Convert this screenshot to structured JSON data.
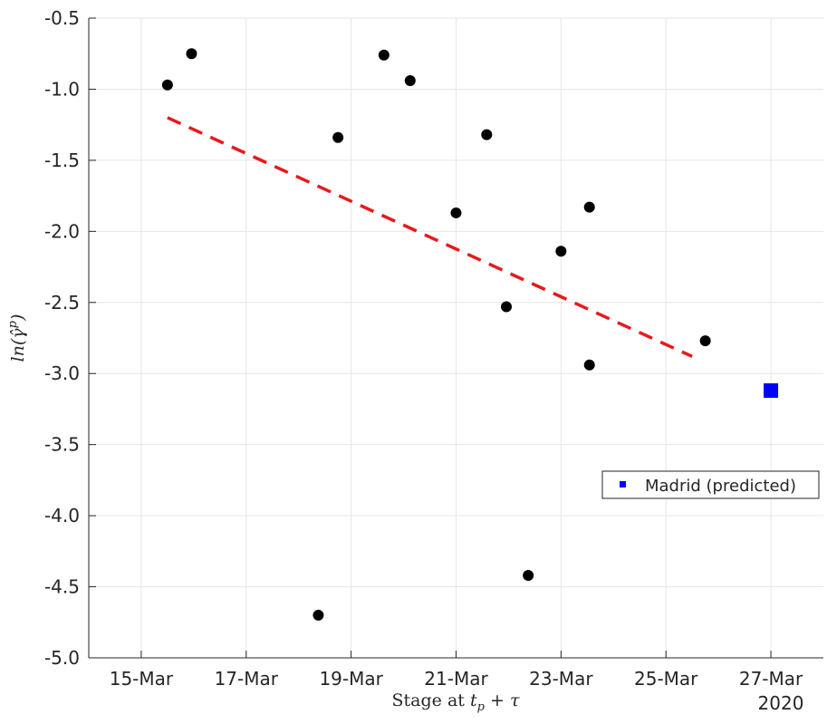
{
  "chart_data": {
    "type": "scatter",
    "title": "",
    "xlabel": "Stage at t_p + τ",
    "ylabel": "ln(γ̂^p)",
    "x_tick_labels": [
      "15-Mar",
      "17-Mar",
      "19-Mar",
      "21-Mar",
      "23-Mar",
      "25-Mar",
      "27-Mar"
    ],
    "x_tick_dates": [
      "2020-03-15",
      "2020-03-17",
      "2020-03-19",
      "2020-03-21",
      "2020-03-23",
      "2020-03-25",
      "2020-03-27"
    ],
    "x_secondary_label": "2020",
    "xlim": [
      "2020-03-14T00:00",
      "2020-03-28T00:00"
    ],
    "ylim": [
      -5.0,
      -0.5
    ],
    "y_ticks": [
      -5.0,
      -4.5,
      -4.0,
      -3.5,
      -3.0,
      -2.5,
      -2.0,
      -1.5,
      -1.0,
      -0.5
    ],
    "y_tick_labels": [
      "-5.0",
      "-4.5",
      "-4.0",
      "-3.5",
      "-3.0",
      "-2.5",
      "-2.0",
      "-1.5",
      "-1.0",
      "-0.5"
    ],
    "grid": true,
    "series": [
      {
        "marker": "circle",
        "color": "#000000",
        "points": [
          {
            "x": "2020-03-15T12:00",
            "y": -0.97
          },
          {
            "x": "2020-03-15T23:00",
            "y": -0.75
          },
          {
            "x": "2020-03-18T09:00",
            "y": -4.7
          },
          {
            "x": "2020-03-18T18:00",
            "y": -1.34
          },
          {
            "x": "2020-03-19T15:00",
            "y": -0.76
          },
          {
            "x": "2020-03-20T03:00",
            "y": -0.94
          },
          {
            "x": "2020-03-21T00:00",
            "y": -1.87
          },
          {
            "x": "2020-03-21T14:00",
            "y": -1.32
          },
          {
            "x": "2020-03-21T23:00",
            "y": -2.53
          },
          {
            "x": "2020-03-22T09:00",
            "y": -4.42
          },
          {
            "x": "2020-03-23T00:00",
            "y": -2.14
          },
          {
            "x": "2020-03-23T13:00",
            "y": -1.83
          },
          {
            "x": "2020-03-23T13:00",
            "y": -2.94
          },
          {
            "x": "2020-03-25T18:00",
            "y": -2.77
          }
        ]
      },
      {
        "marker": "dashed-line",
        "color": "#e8191c",
        "points": [
          {
            "x": "2020-03-15T12:00",
            "y": -1.2
          },
          {
            "x": "2020-03-25T12:00",
            "y": -2.88
          }
        ]
      },
      {
        "name": "Madrid (predicted)",
        "marker": "square",
        "color": "#0000ff",
        "points": [
          {
            "x": "2020-03-27T00:00",
            "y": -3.12
          }
        ]
      }
    ],
    "legend": {
      "placement": "right",
      "entries": [
        "Madrid (predicted)"
      ]
    }
  }
}
